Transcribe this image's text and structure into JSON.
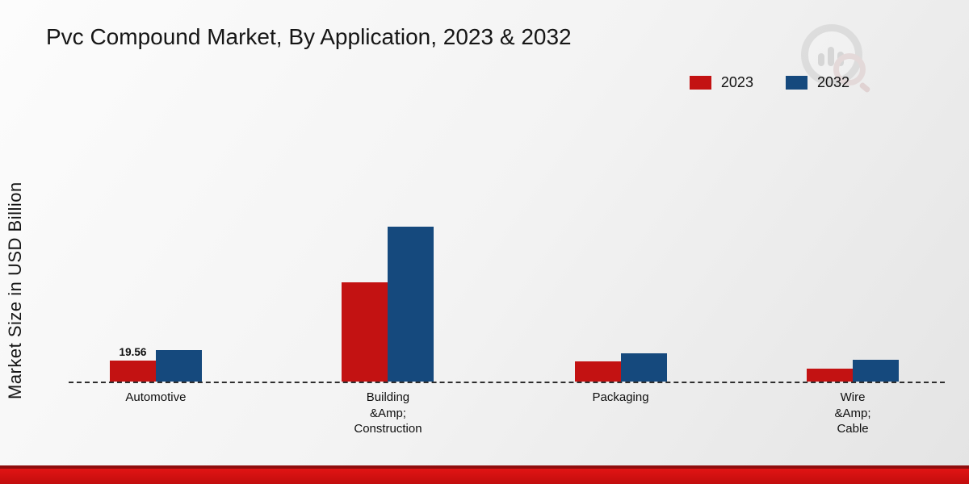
{
  "page": {
    "title": "Pvc Compound Market, By Application, 2023 & 2032",
    "ylabel": "Market Size in USD Billion"
  },
  "legend": {
    "items": [
      {
        "label": "2023",
        "color": "#c31212"
      },
      {
        "label": "2032",
        "color": "#15497d"
      }
    ]
  },
  "chart_data": {
    "type": "bar",
    "title": "Pvc Compound Market, By Application, 2023 & 2032",
    "ylabel": "Market Size in USD Billion",
    "xlabel": "",
    "categories": [
      "Automotive",
      "Building\n&Amp;\nConstruction",
      "Packaging",
      "Wire\n&Amp;\nCable"
    ],
    "series": [
      {
        "name": "2023",
        "color": "#c31212",
        "values": [
          19.56,
          92.4,
          18.8,
          12.0
        ]
      },
      {
        "name": "2032",
        "color": "#15497d",
        "values": [
          29.3,
          144.2,
          26.3,
          20.3
        ]
      }
    ],
    "ylim": [
      0,
      160
    ],
    "grid": false,
    "legend_position": "top-right",
    "baseline_style": "dashed",
    "annotations": [
      {
        "category_index": 0,
        "series": "2023",
        "text": "19.56"
      }
    ]
  },
  "branding": {
    "logo": "market-research-future-watermark",
    "footer_color": "#c20d0d",
    "footer_accent": "#8f0d0d"
  }
}
